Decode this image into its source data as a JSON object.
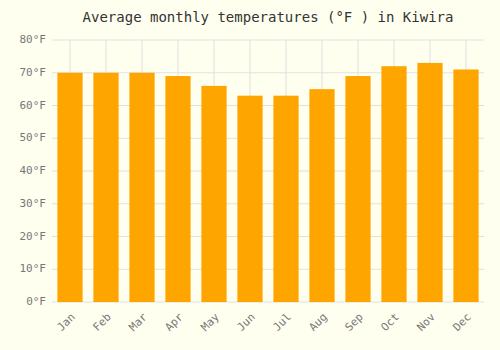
{
  "chart_data": {
    "type": "bar",
    "title": "Average monthly temperatures (°F ) in Kiwira",
    "categories": [
      "Jan",
      "Feb",
      "Mar",
      "Apr",
      "May",
      "Jun",
      "Jul",
      "Aug",
      "Sep",
      "Oct",
      "Nov",
      "Dec"
    ],
    "values": [
      70,
      70,
      70,
      69,
      66,
      63,
      63,
      65,
      69,
      72,
      73,
      71
    ],
    "color": "#FFA500",
    "ylim": [
      0,
      80
    ],
    "yticks": [
      {
        "value": 0,
        "label": "0°F"
      },
      {
        "value": 10,
        "label": "10°F"
      },
      {
        "value": 20,
        "label": "20°F"
      },
      {
        "value": 30,
        "label": "30°F"
      },
      {
        "value": 40,
        "label": "40°F"
      },
      {
        "value": 50,
        "label": "50°F"
      },
      {
        "value": 60,
        "label": "60°F"
      },
      {
        "value": 70,
        "label": "70°F"
      },
      {
        "value": 80,
        "label": "80°F"
      }
    ],
    "grid": true
  }
}
